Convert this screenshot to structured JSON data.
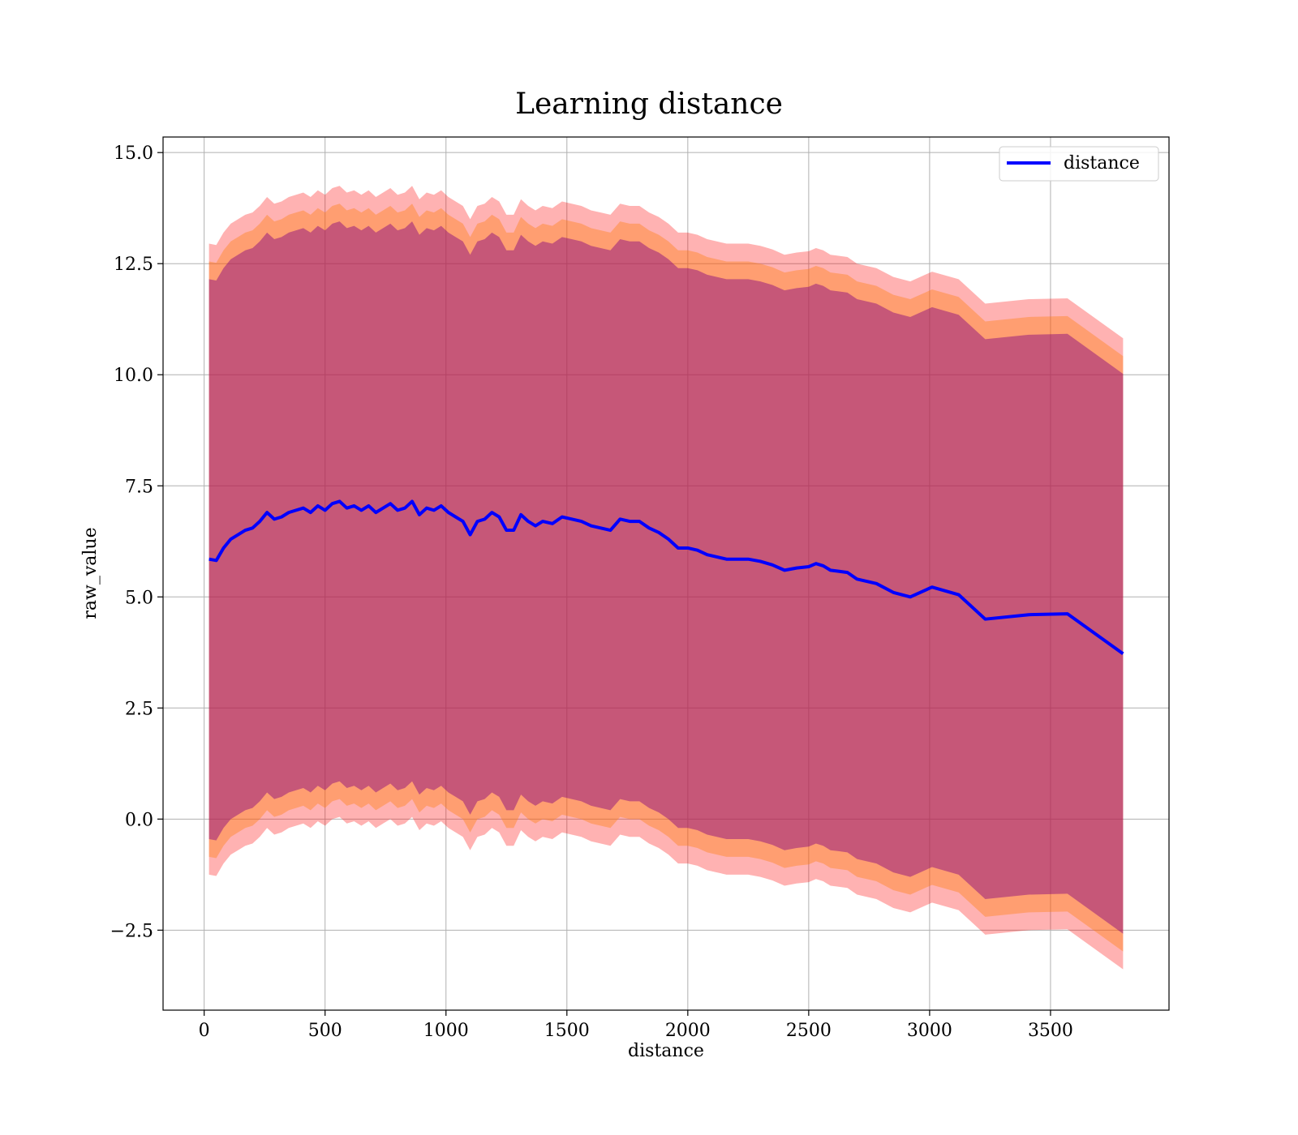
{
  "chart_data": {
    "type": "line",
    "title": "Learning distance",
    "xlabel": "distance",
    "ylabel": "raw_value",
    "xlim": [
      -170,
      3990
    ],
    "ylim": [
      -4.3,
      15.35
    ],
    "xticks": [
      0,
      500,
      1000,
      1500,
      2000,
      2500,
      3000,
      3500
    ],
    "yticks": [
      -2.5,
      0.0,
      2.5,
      5.0,
      7.5,
      10.0,
      12.5,
      15.0
    ],
    "xtick_labels": [
      "0",
      "500",
      "1000",
      "1500",
      "2000",
      "2500",
      "3000",
      "3500"
    ],
    "ytick_labels": [
      "−2.5",
      "0.0",
      "2.5",
      "5.0",
      "7.5",
      "10.0",
      "12.5",
      "15.0"
    ],
    "grid": true,
    "legend": {
      "placement": "top-right",
      "entries": [
        "distance"
      ]
    },
    "colors": {
      "line": "#0000ff",
      "band_outer": "#ff0000",
      "band_middle": "#ff7f0e",
      "band_inner": "#800080"
    },
    "x": [
      20,
      50,
      80,
      110,
      140,
      170,
      200,
      230,
      260,
      290,
      320,
      350,
      380,
      410,
      440,
      470,
      500,
      530,
      560,
      590,
      620,
      650,
      680,
      710,
      740,
      770,
      800,
      830,
      860,
      890,
      920,
      950,
      980,
      1010,
      1040,
      1070,
      1100,
      1130,
      1160,
      1190,
      1220,
      1250,
      1280,
      1310,
      1340,
      1370,
      1400,
      1440,
      1480,
      1520,
      1560,
      1600,
      1640,
      1680,
      1720,
      1760,
      1800,
      1840,
      1880,
      1920,
      1960,
      2000,
      2040,
      2080,
      2120,
      2160,
      2200,
      2250,
      2300,
      2350,
      2400,
      2450,
      2500,
      2530,
      2560,
      2590,
      2620,
      2660,
      2700,
      2740,
      2780,
      2850,
      2920,
      3010,
      3120,
      3230,
      3410,
      3570,
      3800
    ],
    "series": [
      {
        "name": "distance",
        "values": [
          5.85,
          5.82,
          6.1,
          6.3,
          6.4,
          6.5,
          6.55,
          6.7,
          6.9,
          6.75,
          6.8,
          6.9,
          6.95,
          7.0,
          6.9,
          7.05,
          6.95,
          7.1,
          7.15,
          7.0,
          7.05,
          6.95,
          7.05,
          6.9,
          7.0,
          7.1,
          6.95,
          7.0,
          7.15,
          6.85,
          7.0,
          6.95,
          7.05,
          6.9,
          6.8,
          6.7,
          6.4,
          6.7,
          6.75,
          6.9,
          6.8,
          6.5,
          6.5,
          6.85,
          6.7,
          6.6,
          6.7,
          6.65,
          6.8,
          6.75,
          6.7,
          6.6,
          6.55,
          6.5,
          6.75,
          6.7,
          6.7,
          6.55,
          6.45,
          6.3,
          6.1,
          6.1,
          6.05,
          5.95,
          5.9,
          5.85,
          5.85,
          5.85,
          5.8,
          5.72,
          5.6,
          5.65,
          5.68,
          5.75,
          5.7,
          5.6,
          5.58,
          5.55,
          5.4,
          5.35,
          5.3,
          5.1,
          5.0,
          5.22,
          5.05,
          4.5,
          4.6,
          4.62,
          3.72
        ]
      }
    ],
    "bands": [
      {
        "name": "outer",
        "spread": 7.1
      },
      {
        "name": "middle",
        "spread": 6.7
      },
      {
        "name": "inner",
        "spread": 6.3
      }
    ]
  }
}
